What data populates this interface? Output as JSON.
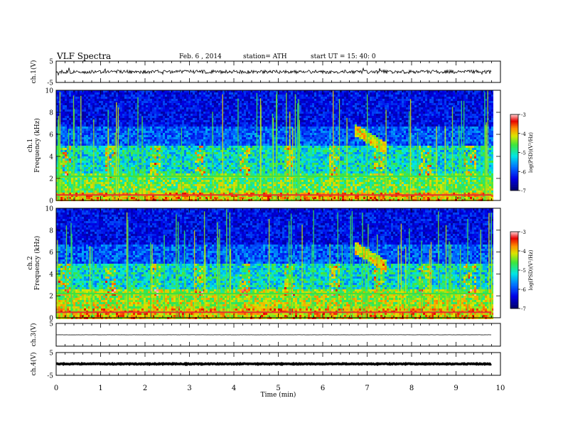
{
  "header": {
    "title": "VLF  Spectra",
    "date": "Feb. 6  , 2014",
    "station": "station= ATH",
    "start": "start  UT  =    15: 40: 0"
  },
  "chart_data": {
    "type": "heatmap",
    "xlabel": "Time  (min)",
    "xlim": [
      0,
      10
    ],
    "xticks": [
      "0",
      "1",
      "2",
      "3",
      "4",
      "5",
      "6",
      "7",
      "8",
      "9",
      "10"
    ],
    "panels": [
      {
        "id": "ch1v",
        "type": "line",
        "ylabel": "ch.1(V)",
        "ylim": [
          -5,
          5
        ],
        "yticks": [
          "5",
          "-5"
        ],
        "level": 0
      },
      {
        "id": "spec1",
        "type": "heatmap",
        "ylabel": "ch.1\nFrequency  (kHz)",
        "ylim": [
          0,
          10
        ],
        "yticks": [
          "0",
          "2",
          "4",
          "6",
          "8",
          "10"
        ],
        "colorbar": {
          "label": "log(PSD)(V²/Hz)",
          "range": [
            -7,
            -3
          ],
          "ticks": [
            "-3",
            "-4",
            "-5",
            "-6",
            "-7"
          ]
        }
      },
      {
        "id": "spec2",
        "type": "heatmap",
        "ylabel": "ch.2\nFrequency  (kHz)",
        "ylim": [
          0,
          10
        ],
        "yticks": [
          "0",
          "2",
          "4",
          "6",
          "8",
          "10"
        ],
        "colorbar": {
          "label": "log(PSD)(V²/Hz)",
          "range": [
            -7,
            -3
          ],
          "ticks": [
            "-3",
            "-4",
            "-5",
            "-6",
            "-7"
          ]
        }
      },
      {
        "id": "ch3v",
        "type": "line",
        "ylabel": "ch.3(V)",
        "ylim": [
          -5,
          5
        ],
        "yticks": [
          "5"
        ],
        "level": 0
      },
      {
        "id": "ch4v",
        "type": "line",
        "ylabel": "ch.4(V)",
        "ylim": [
          -5,
          5
        ],
        "yticks": [
          "5",
          "-5"
        ],
        "level": 0
      }
    ],
    "features": {
      "emission_bursts_khz": [
        2.5,
        4.5
      ],
      "whistler_start_min": 6.7,
      "whistler_freq_khz": [
        6.5,
        4.5
      ],
      "strong_lines_khz": [
        0.5,
        2.2
      ],
      "data_end_min": 9.8
    }
  }
}
